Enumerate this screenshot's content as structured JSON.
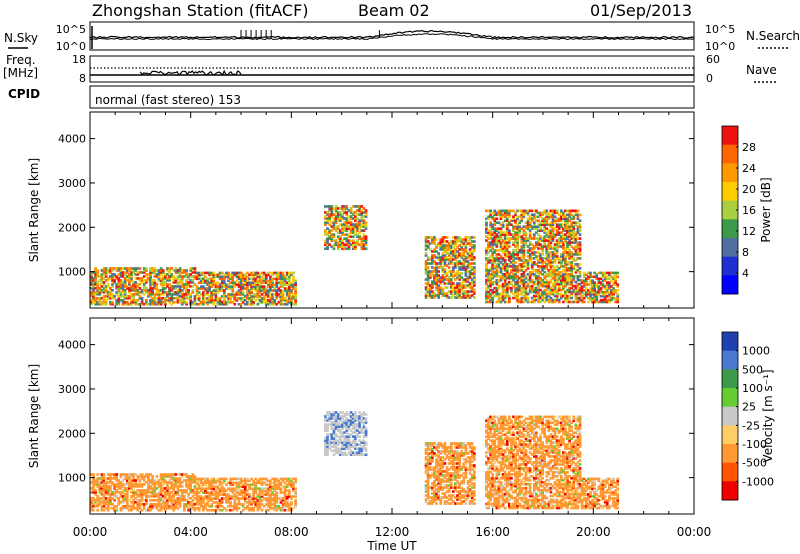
{
  "header": {
    "station": "Zhongshan Station (fitACF)",
    "beam": "Beam 02",
    "date": "01/Sep/2013"
  },
  "panels": {
    "nsky": {
      "label": "N.Sky",
      "ticks_left": [
        "10^5",
        "10^0"
      ],
      "ticks_right": [
        "10^5",
        "10^0"
      ],
      "right_label": "N.Search"
    },
    "freq": {
      "label_top": "Freq.",
      "label_unit": "[MHz]",
      "ticks_left": [
        "18",
        "8"
      ],
      "ticks_right": [
        "60",
        "0"
      ],
      "right_label": "Nave"
    },
    "cpid": {
      "label": "CPID",
      "mode_text": "normal (fast stereo) 153"
    }
  },
  "chart_data": [
    {
      "type": "heatmap",
      "title": "",
      "xlabel": "Time UT",
      "ylabel": "Slant Range [km]",
      "xticks": [
        "00:00",
        "04:00",
        "08:00",
        "12:00",
        "16:00",
        "20:00",
        "00:00"
      ],
      "xlim_hours": [
        0,
        24
      ],
      "ylim": [
        180,
        4600
      ],
      "yticks": [
        1000,
        2000,
        3000,
        4000
      ],
      "colorbar": {
        "label": "Power [dB]",
        "ticks": [
          "28",
          "24",
          "20",
          "16",
          "12",
          "8",
          "4"
        ],
        "colors": [
          "#ee1111",
          "#ff6600",
          "#ff9900",
          "#ffcc00",
          "#a8d040",
          "#3d9a4a",
          "#506e9e",
          "#2030d0",
          "#0000ff"
        ]
      },
      "echo_regions": [
        {
          "t": [
            0.0,
            4.2
          ],
          "r": [
            250,
            1100
          ],
          "value": "mixed"
        },
        {
          "t": [
            4.2,
            8.2
          ],
          "r": [
            250,
            1000
          ],
          "value": "mixed"
        },
        {
          "t": [
            9.3,
            11.0
          ],
          "r": [
            1500,
            2500
          ],
          "value": "mixed"
        },
        {
          "t": [
            13.3,
            15.3
          ],
          "r": [
            400,
            1800
          ],
          "value": "mixed"
        },
        {
          "t": [
            15.7,
            19.5
          ],
          "r": [
            300,
            2400
          ],
          "value": "mixed"
        },
        {
          "t": [
            19.5,
            21.0
          ],
          "r": [
            300,
            1000
          ],
          "value": "mixed"
        }
      ]
    },
    {
      "type": "heatmap",
      "title": "",
      "xlabel": "Time UT",
      "ylabel": "Slant Range [km]",
      "xticks": [
        "00:00",
        "04:00",
        "08:00",
        "12:00",
        "16:00",
        "20:00",
        "00:00"
      ],
      "xlim_hours": [
        0,
        24
      ],
      "ylim": [
        180,
        4600
      ],
      "yticks": [
        1000,
        2000,
        3000,
        4000
      ],
      "colorbar": {
        "label": "Velocity [m s⁻¹]",
        "ticks": [
          "1000",
          "500",
          "100",
          "25",
          "-25",
          "-100",
          "-500",
          "-1000"
        ],
        "colors": [
          "#2040b0",
          "#4a7ad0",
          "#3d9a4a",
          "#66cc33",
          "#c8c8c8",
          "#ffcc66",
          "#ff9933",
          "#ff5500",
          "#ee0000"
        ]
      },
      "echo_regions": [
        {
          "t": [
            0.0,
            4.2
          ],
          "r": [
            250,
            1100
          ],
          "value": "negative"
        },
        {
          "t": [
            4.2,
            8.2
          ],
          "r": [
            250,
            1000
          ],
          "value": "negative"
        },
        {
          "t": [
            9.3,
            11.0
          ],
          "r": [
            1500,
            2500
          ],
          "value": "near-zero"
        },
        {
          "t": [
            13.3,
            15.3
          ],
          "r": [
            400,
            1800
          ],
          "value": "negative"
        },
        {
          "t": [
            15.7,
            19.5
          ],
          "r": [
            300,
            2400
          ],
          "value": "negative"
        },
        {
          "t": [
            19.5,
            21.0
          ],
          "r": [
            300,
            1000
          ],
          "value": "negative"
        }
      ]
    }
  ]
}
